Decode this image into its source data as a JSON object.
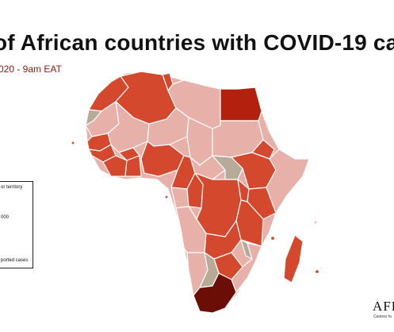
{
  "header": {
    "title": "of African countries with COVID-19 ca",
    "subtitle": "020 - 9am EAT"
  },
  "legend": {
    "items": [
      "or territory",
      "000",
      "",
      "ported cases"
    ]
  },
  "logo": {
    "text": "AFR",
    "subtext": "Centres fo"
  },
  "colors": {
    "none_reported": "#b8aa98",
    "low": "#e7b0a8",
    "medium": "#d4492d",
    "high": "#b3200e",
    "very_high": "#6b0e06",
    "border": "#ffffff",
    "title_text": "#111111",
    "subtitle_text": "#8a1c10"
  }
}
